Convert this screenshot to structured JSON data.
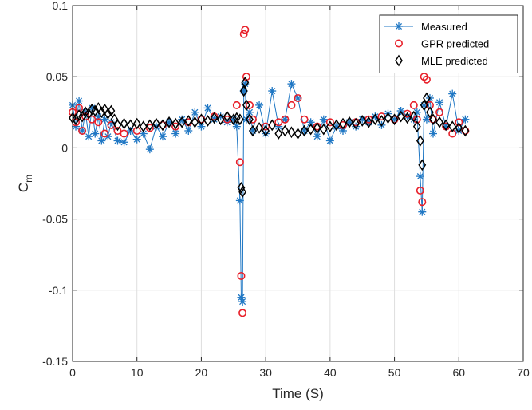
{
  "chart_data": {
    "type": "scatter",
    "title": "",
    "xlabel": "Time (S)",
    "ylabel": "C",
    "ylabel_subscript": "m",
    "xlim": [
      0,
      70
    ],
    "ylim": [
      -0.15,
      0.1
    ],
    "xticks": [
      "0",
      "10",
      "20",
      "30",
      "40",
      "50",
      "60",
      "70"
    ],
    "yticks": [
      "-0.15",
      "-0.1",
      "-0.05",
      "0",
      "0.05",
      "0.1"
    ],
    "grid": true,
    "legend_position": "top-right",
    "series": [
      {
        "name": "Measured",
        "marker": "asterisk-line",
        "color": "#1f77c4",
        "x": [
          0,
          0.5,
          1,
          1.5,
          2,
          2.5,
          3,
          3.5,
          4,
          4.5,
          5,
          5.5,
          6,
          7,
          8,
          9,
          10,
          11,
          12,
          13,
          14,
          15,
          16,
          17,
          18,
          19,
          20,
          21,
          22,
          23,
          24,
          25,
          25.5,
          26,
          26.2,
          26.4,
          26.6,
          26.8,
          27,
          27.5,
          28,
          29,
          30,
          31,
          32,
          33,
          34,
          35,
          36,
          37,
          38,
          39,
          40,
          41,
          42,
          43,
          44,
          45,
          46,
          47,
          48,
          49,
          50,
          51,
          52,
          53,
          53.5,
          54,
          54.3,
          54.6,
          55,
          55.5,
          56,
          57,
          58,
          59,
          60,
          61
        ],
        "y": [
          0.03,
          0.015,
          0.033,
          0.012,
          0.025,
          0.008,
          0.028,
          0.01,
          0.022,
          0.005,
          0.02,
          0.008,
          0.018,
          0.005,
          0.004,
          0.012,
          0.006,
          0.01,
          -0.001,
          0.015,
          0.008,
          0.018,
          0.01,
          0.02,
          0.012,
          0.025,
          0.015,
          0.028,
          0.02,
          0.022,
          0.018,
          0.02,
          0.015,
          -0.037,
          -0.105,
          -0.108,
          0.04,
          0.045,
          0.02,
          0.025,
          0.012,
          0.03,
          0.01,
          0.04,
          0.015,
          0.02,
          0.045,
          0.035,
          0.012,
          0.018,
          0.008,
          0.02,
          0.005,
          0.015,
          0.012,
          0.018,
          0.015,
          0.02,
          0.018,
          0.022,
          0.016,
          0.024,
          0.02,
          0.026,
          0.022,
          0.02,
          0.025,
          -0.02,
          -0.045,
          0.03,
          0.02,
          0.035,
          0.01,
          0.032,
          0.015,
          0.038,
          0.012,
          0.02
        ]
      },
      {
        "name": "GPR predicted",
        "marker": "circle",
        "color": "#e8202a",
        "x": [
          0,
          0.5,
          1,
          1.5,
          2,
          3,
          4,
          5,
          6,
          7,
          8,
          10,
          12,
          14,
          16,
          18,
          20,
          22,
          24,
          25.5,
          26,
          26.2,
          26.4,
          26.6,
          26.8,
          27,
          27.5,
          28,
          30,
          32,
          33,
          34,
          35,
          36,
          38,
          40,
          42,
          44,
          46,
          48,
          50,
          52,
          53,
          53.5,
          54,
          54.3,
          54.6,
          55,
          55.5,
          56,
          57,
          58,
          59,
          60,
          61
        ],
        "y": [
          0.025,
          0.018,
          0.028,
          0.012,
          0.022,
          0.02,
          0.018,
          0.01,
          0.016,
          0.012,
          0.01,
          0.012,
          0.014,
          0.016,
          0.015,
          0.018,
          0.02,
          0.022,
          0.02,
          0.03,
          -0.01,
          -0.09,
          -0.116,
          0.08,
          0.083,
          0.05,
          0.03,
          0.02,
          0.015,
          0.018,
          0.02,
          0.03,
          0.035,
          0.02,
          0.015,
          0.018,
          0.016,
          0.018,
          0.02,
          0.022,
          0.02,
          0.024,
          0.03,
          0.02,
          -0.03,
          -0.038,
          0.05,
          0.048,
          0.03,
          0.02,
          0.025,
          0.015,
          0.01,
          0.018,
          0.012
        ]
      },
      {
        "name": "MLE predicted",
        "marker": "diamond",
        "color": "#000000",
        "x": [
          0,
          0.5,
          1,
          1.5,
          2,
          2.5,
          3,
          3.5,
          4,
          4.5,
          5,
          5.5,
          6,
          6.5,
          7,
          8,
          9,
          10,
          11,
          12,
          13,
          14,
          15,
          16,
          17,
          18,
          19,
          20,
          21,
          22,
          23,
          24,
          25,
          25.5,
          26,
          26.2,
          26.4,
          26.6,
          26.8,
          27,
          27.5,
          28,
          29,
          30,
          31,
          32,
          33,
          34,
          35,
          36,
          37,
          38,
          39,
          40,
          41,
          42,
          43,
          44,
          45,
          46,
          47,
          48,
          49,
          50,
          51,
          52,
          53,
          53.5,
          54,
          54.3,
          54.6,
          55,
          55.5,
          56,
          57,
          58,
          59,
          60,
          61
        ],
        "y": [
          0.021,
          0.02,
          0.023,
          0.022,
          0.025,
          0.024,
          0.027,
          0.026,
          0.028,
          0.025,
          0.027,
          0.024,
          0.026,
          0.02,
          0.016,
          0.017,
          0.016,
          0.017,
          0.015,
          0.016,
          0.017,
          0.016,
          0.018,
          0.017,
          0.018,
          0.019,
          0.018,
          0.02,
          0.019,
          0.021,
          0.02,
          0.022,
          0.02,
          0.021,
          0.02,
          -0.028,
          -0.031,
          0.04,
          0.046,
          0.03,
          0.02,
          0.012,
          0.014,
          0.012,
          0.016,
          0.01,
          0.012,
          0.011,
          0.01,
          0.012,
          0.013,
          0.014,
          0.013,
          0.015,
          0.016,
          0.017,
          0.018,
          0.017,
          0.019,
          0.018,
          0.02,
          0.019,
          0.021,
          0.02,
          0.022,
          0.021,
          0.022,
          0.015,
          0.005,
          -0.012,
          0.03,
          0.035,
          0.025,
          0.02,
          0.018,
          0.016,
          0.015,
          0.014,
          0.012
        ]
      }
    ]
  }
}
